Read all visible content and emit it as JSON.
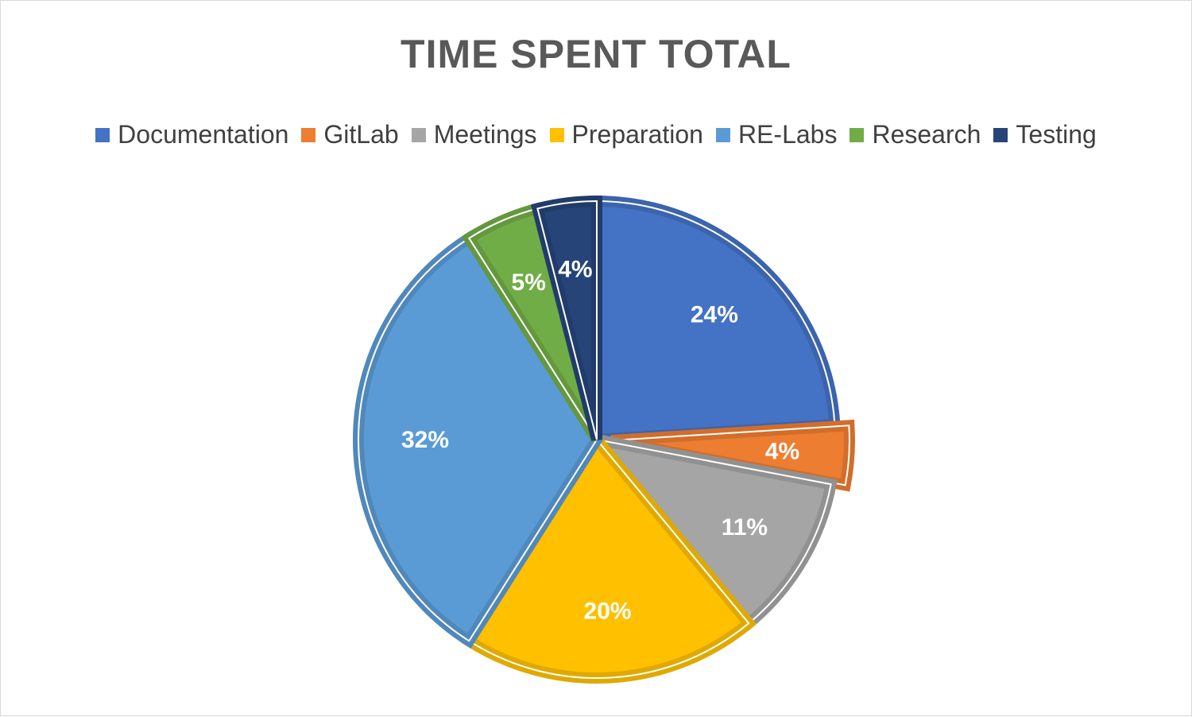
{
  "chart_data": {
    "type": "pie",
    "title": "TIME SPENT TOTAL",
    "categories": [
      "Documentation",
      "GitLab",
      "Meetings",
      "Preparation",
      "RE-Labs",
      "Research",
      "Testing"
    ],
    "values": [
      24,
      4,
      11,
      20,
      32,
      5,
      4
    ],
    "value_labels": [
      "24%",
      "4%",
      "11%",
      "20%",
      "32%",
      "5%",
      "4%"
    ],
    "colors": [
      "#4472C4",
      "#ED7D31",
      "#A5A5A5",
      "#FFC000",
      "#5B9BD5",
      "#70AD47",
      "#264478"
    ],
    "legend_position": "top",
    "start_angle": "12 o'clock, clockwise",
    "exploded_slice": "GitLab"
  }
}
